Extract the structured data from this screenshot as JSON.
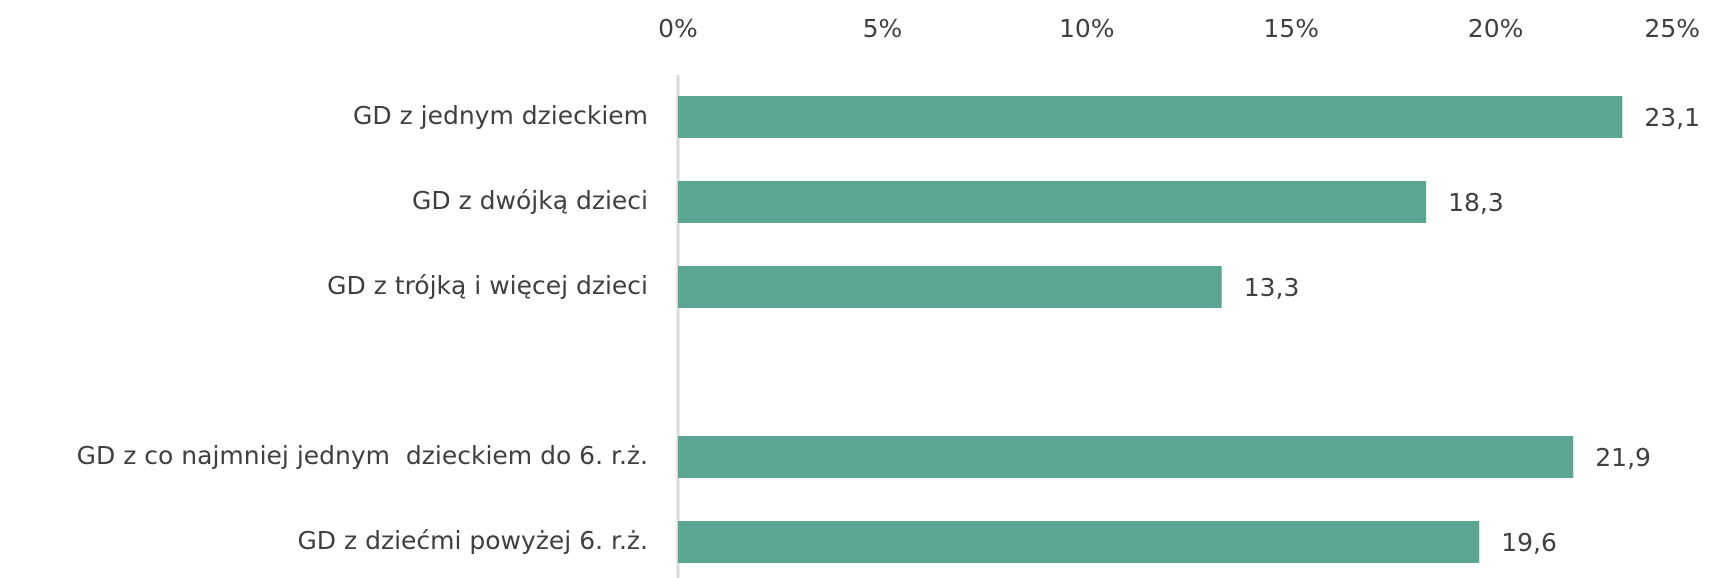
{
  "chart_data": {
    "type": "hbar",
    "categories": [
      "GD z jednym dzieckiem",
      "GD z dwójką dzieci",
      "GD z trójką i więcej dzieci",
      null,
      "GD z co najmniej jednym  dzieckiem do 6. r.ż.",
      "GD z dziećmi powyżej 6. r.ż."
    ],
    "values": [
      23.1,
      18.3,
      13.3,
      null,
      21.9,
      19.6
    ],
    "value_labels": [
      "23,1",
      "18,3",
      "13,3",
      null,
      "21,9",
      "19,6"
    ],
    "color": "#5ba593",
    "xlim": [
      0,
      25
    ],
    "xticks": [
      {
        "value": 0,
        "label": "0%"
      },
      {
        "value": 5,
        "label": "5%"
      },
      {
        "value": 10,
        "label": "10%"
      },
      {
        "value": 15,
        "label": "15%"
      },
      {
        "value": 20,
        "label": "20%"
      },
      {
        "value": 25,
        "label": "25%"
      }
    ],
    "grid": false
  }
}
